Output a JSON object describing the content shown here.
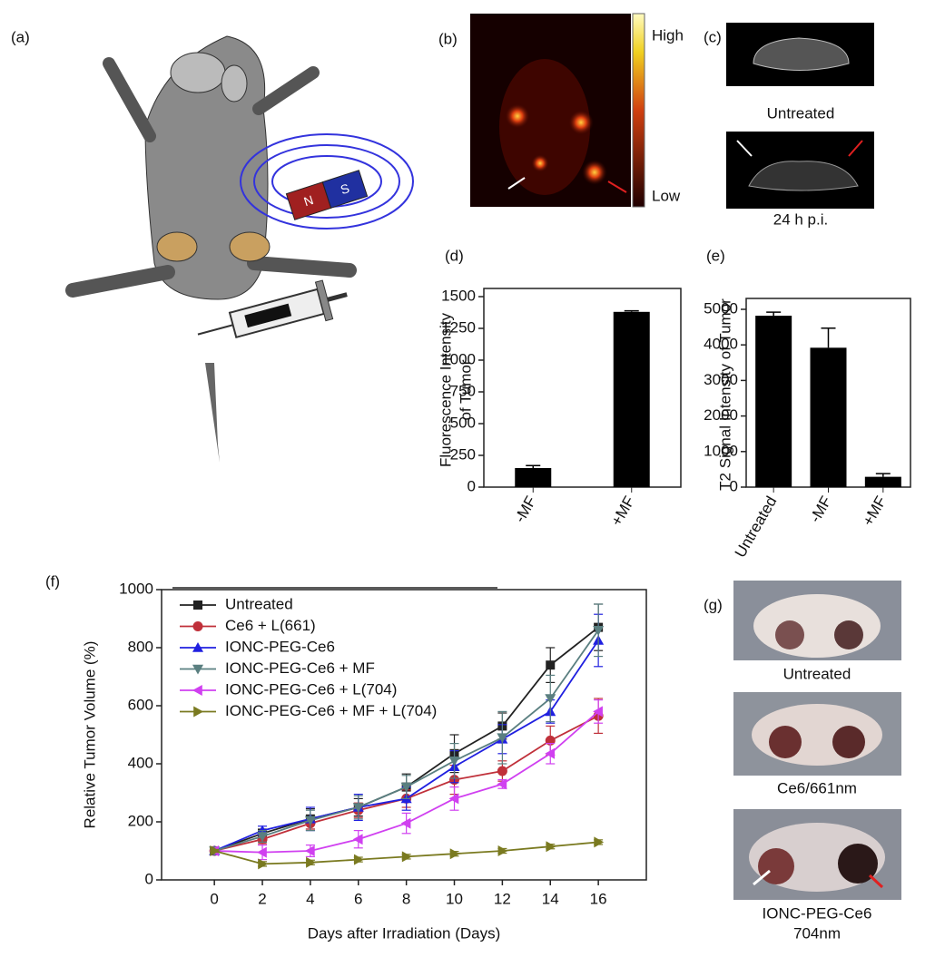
{
  "figure": {
    "panel_a": "(a)",
    "panel_b": "(b)",
    "panel_c": "(c)",
    "panel_g": "(g)",
    "magnet_n": "N",
    "magnet_s": "S",
    "colorbar_high": "High",
    "colorbar_low": "Low",
    "c_captions": [
      "Untreated",
      "24 h p.i."
    ],
    "g_captions": [
      "Untreated",
      "Ce6/661nm",
      "IONC-PEG-Ce6",
      "704nm"
    ]
  },
  "chart_data": [
    {
      "type": "bar",
      "panel": "(d)",
      "y_label": [
        "Fluorescence Intensity",
        "of Tumor"
      ],
      "categories": [
        "-MF",
        "+MF"
      ],
      "values": [
        150,
        1380
      ],
      "errors": [
        20,
        8
      ],
      "color": "#000000",
      "ylim": [
        0,
        1500
      ],
      "yticks": [
        0,
        250,
        500,
        750,
        1000,
        1250,
        1500
      ]
    },
    {
      "type": "bar",
      "panel": "(e)",
      "y_label": [
        "T2 Signal Intensity of Tumor"
      ],
      "categories": [
        "Untreated",
        "-MF",
        "+MF"
      ],
      "values": [
        4820,
        3920,
        290
      ],
      "errors": [
        100,
        550,
        90
      ],
      "color": "#000000",
      "ylim": [
        0,
        5000
      ],
      "yticks": [
        0,
        1000,
        2000,
        3000,
        4000,
        5000
      ]
    },
    {
      "type": "line",
      "panel": "(f)",
      "x_label": "Days after Irradiation (Days)",
      "y_label": [
        "Relative Tumor Volume (%)"
      ],
      "x": [
        0,
        2,
        4,
        6,
        8,
        10,
        12,
        14,
        16
      ],
      "xlim": [
        -2.2,
        18
      ],
      "xticks": [
        0,
        2,
        4,
        6,
        8,
        10,
        12,
        14,
        16
      ],
      "ylim": [
        0,
        1000
      ],
      "yticks": [
        0,
        200,
        400,
        600,
        800,
        1000
      ],
      "series": [
        {
          "name": "Untreated",
          "color": "#222222",
          "marker": "square",
          "values": [
            100,
            160,
            210,
            250,
            320,
            435,
            530,
            740,
            870
          ],
          "errors": [
            5,
            15,
            35,
            30,
            45,
            65,
            45,
            60,
            80
          ]
        },
        {
          "name": "Ce6 + L(661)",
          "color": "#c0303a",
          "marker": "circle",
          "values": [
            100,
            140,
            195,
            240,
            280,
            345,
            375,
            480,
            565
          ],
          "errors": [
            5,
            15,
            20,
            25,
            30,
            50,
            35,
            50,
            60
          ]
        },
        {
          "name": "IONC-PEG-Ce6",
          "color": "#2020e0",
          "marker": "triangle-up",
          "values": [
            100,
            170,
            210,
            250,
            280,
            390,
            485,
            580,
            825
          ],
          "errors": [
            5,
            15,
            40,
            45,
            40,
            55,
            50,
            40,
            90
          ]
        },
        {
          "name": "IONC-PEG-Ce6 + MF",
          "color": "#5a7f80",
          "marker": "triangle-down",
          "values": [
            100,
            150,
            205,
            250,
            320,
            410,
            490,
            625,
            860
          ],
          "errors": [
            5,
            20,
            35,
            40,
            40,
            60,
            90,
            80,
            90
          ]
        },
        {
          "name": "IONC-PEG-Ce6 + L(704)",
          "color": "#d040f0",
          "marker": "triangle-left",
          "values": [
            100,
            95,
            100,
            140,
            195,
            280,
            330,
            435,
            580
          ],
          "errors": [
            5,
            25,
            20,
            30,
            35,
            40,
            15,
            35,
            40
          ]
        },
        {
          "name": "IONC-PEG-Ce6 + MF + L(704)",
          "color": "#7a7a20",
          "marker": "triangle-right",
          "values": [
            100,
            55,
            60,
            70,
            80,
            90,
            100,
            115,
            130
          ],
          "errors": [
            5,
            8,
            8,
            8,
            8,
            8,
            8,
            8,
            8
          ]
        }
      ]
    }
  ]
}
